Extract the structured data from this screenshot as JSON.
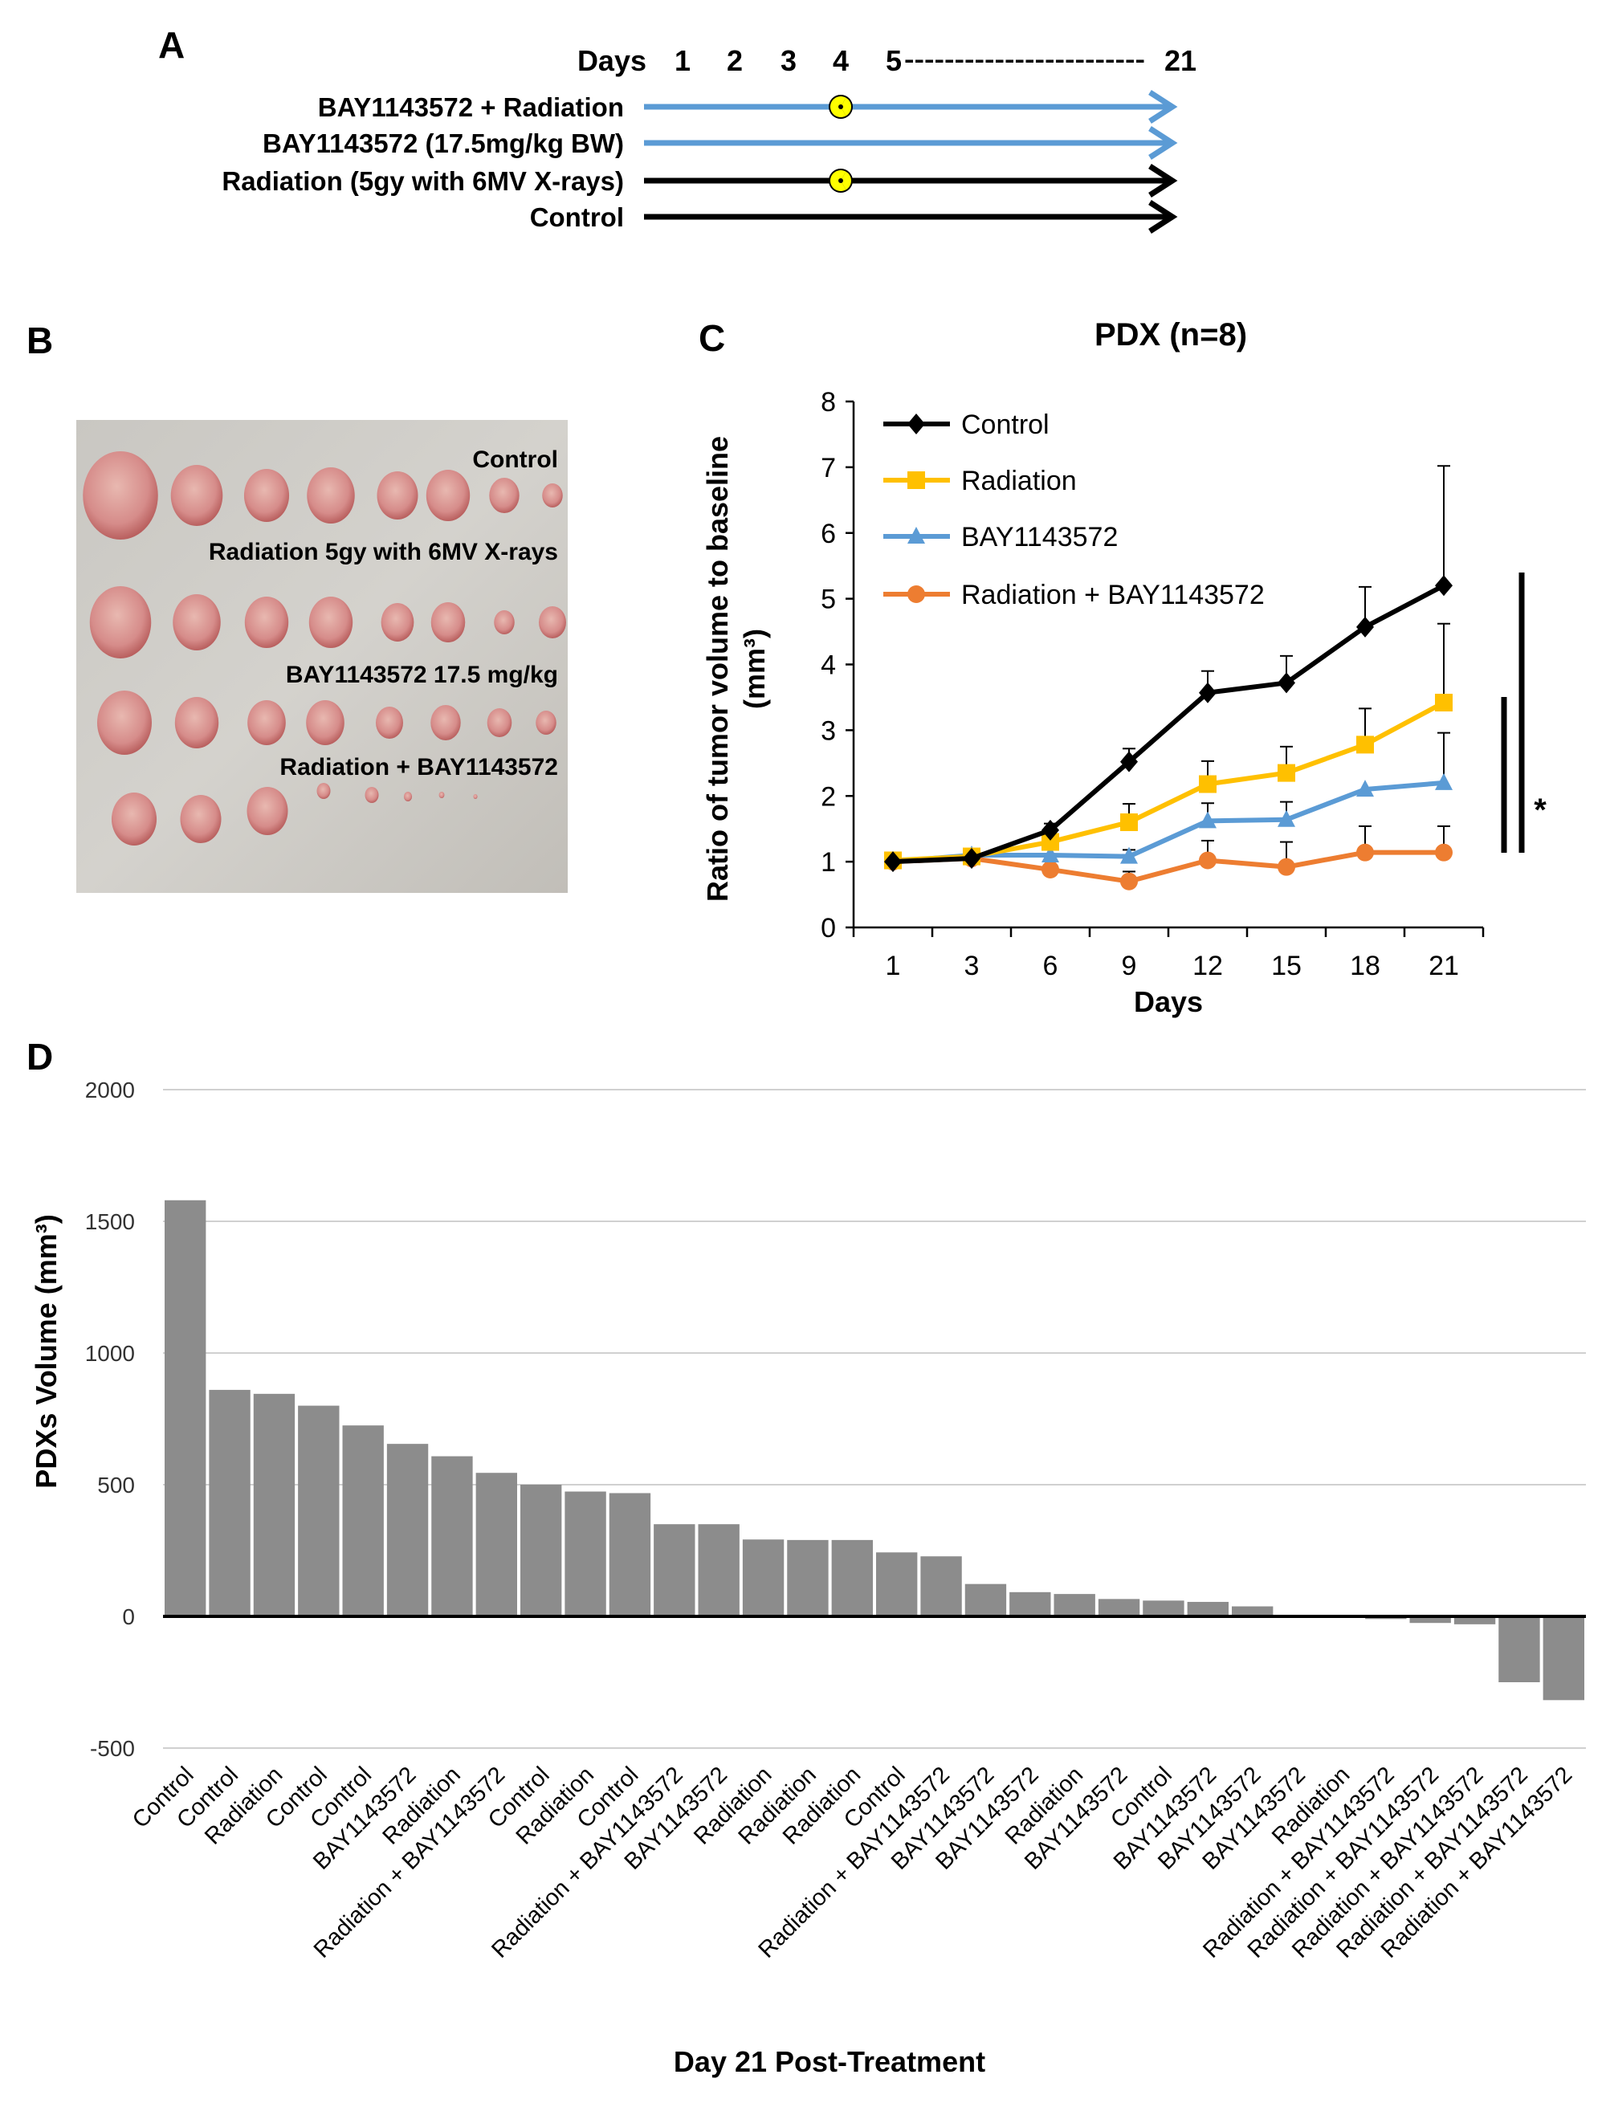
{
  "panels": {
    "a": "A",
    "b": "B",
    "c": "C",
    "d": "D"
  },
  "panel_a": {
    "days_label": "Days",
    "days": [
      "1",
      "2",
      "3",
      "4",
      "5"
    ],
    "dashes": "------------------------",
    "end_day": "21",
    "rows": [
      {
        "label": "BAY1143572 + Radiation",
        "color": "#5b9bd5",
        "radiation_icon": true
      },
      {
        "label": "BAY1143572 (17.5mg/kg BW)",
        "color": "#5b9bd5",
        "radiation_icon": false
      },
      {
        "label": "Radiation (5gy with 6MV  X-rays)",
        "color": "#000000",
        "radiation_icon": true
      },
      {
        "label": "Control",
        "color": "#000000",
        "radiation_icon": false
      }
    ],
    "radiation_icon_day": "4"
  },
  "panel_b": {
    "labels": [
      "Control",
      "Radiation 5gy with 6MV  X-rays",
      "BAY1143572 17.5 mg/kg",
      "Radiation + BAY1143572"
    ]
  },
  "chart_data": [
    {
      "type": "line",
      "title": "PDX (n=8)",
      "xlabel": "Days",
      "ylabel": "Ratio of tumor volume to baseline",
      "ylabel_unit": "(mm³)",
      "categories": [
        "1",
        "3",
        "6",
        "9",
        "12",
        "15",
        "18",
        "21"
      ],
      "ylim": [
        0,
        8
      ],
      "yticks": [
        "0",
        "1",
        "2",
        "3",
        "4",
        "5",
        "6",
        "7",
        "8"
      ],
      "grid": false,
      "legend_position": "top-left",
      "significance_mark": "*",
      "series": [
        {
          "name": "Control",
          "color": "#000000",
          "marker": "diamond",
          "values": [
            1.0,
            1.05,
            1.48,
            2.52,
            3.57,
            3.72,
            4.57,
            5.2
          ],
          "error": [
            0.05,
            0.05,
            0.1,
            0.2,
            0.33,
            0.41,
            0.61,
            1.82
          ]
        },
        {
          "name": "Radiation",
          "color": "#ffc000",
          "marker": "square",
          "values": [
            1.02,
            1.08,
            1.3,
            1.6,
            2.18,
            2.35,
            2.78,
            3.42
          ],
          "error": [
            0,
            0,
            0.05,
            0.28,
            0.35,
            0.4,
            0.55,
            1.2
          ]
        },
        {
          "name": "BAY1143572",
          "color": "#5b9bd5",
          "marker": "triangle",
          "values": [
            1.0,
            1.1,
            1.1,
            1.08,
            1.62,
            1.64,
            2.1,
            2.2
          ],
          "error": [
            0,
            0,
            0,
            0.1,
            0.27,
            0.27,
            0,
            0.76
          ]
        },
        {
          "name": "Radiation + BAY1143572",
          "color": "#ed7d31",
          "marker": "circle",
          "values": [
            1.0,
            1.05,
            0.88,
            0.7,
            1.02,
            0.92,
            1.14,
            1.14
          ],
          "error": [
            0,
            0,
            0,
            0.15,
            0.3,
            0.38,
            0.4,
            0.4
          ]
        }
      ]
    },
    {
      "type": "bar",
      "xlabel": "Day 21 Post-Treatment",
      "ylabel": "PDXs Volume (mm³)",
      "ylim": [
        -500,
        2000
      ],
      "yticks": [
        "-500",
        "0",
        "500",
        "1000",
        "1500",
        "2000"
      ],
      "grid": true,
      "bar_color": "#8c8c8c",
      "categories": [
        "Control",
        "Control",
        "Radiation",
        "Control",
        "Control",
        "BAY1143572",
        "Radiation",
        "Radiation + BAY1143572",
        "Control",
        "Radiation",
        "Control",
        "Radiation + BAY1143572",
        "BAY1143572",
        "Radiation",
        "Radiation",
        "Radiation",
        "Control",
        "Radiation + BAY1143572",
        "BAY1143572",
        "BAY1143572",
        "Radiation",
        "BAY1143572",
        "Control",
        "BAY1143572",
        "BAY1143572",
        "BAY1143572",
        "Radiation",
        "Radiation + BAY1143572",
        "Radiation + BAY1143572",
        "Radiation + BAY1143572",
        "Radiation + BAY1143572",
        "Radiation + BAY1143572"
      ],
      "values": [
        1580,
        860,
        845,
        800,
        725,
        655,
        608,
        545,
        500,
        474,
        468,
        350,
        350,
        292,
        290,
        290,
        243,
        228,
        123,
        92,
        85,
        66,
        60,
        55,
        38,
        2,
        -5,
        -10,
        -25,
        -30,
        -250,
        -318
      ]
    }
  ]
}
